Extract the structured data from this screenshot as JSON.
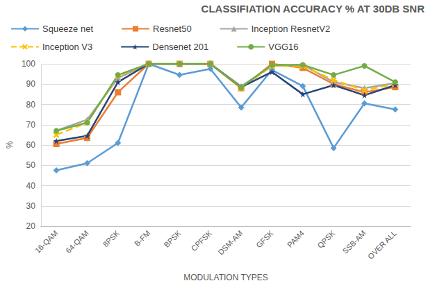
{
  "chart_data": {
    "type": "line",
    "title": "CLASSIFIATION ACCURACY % AT 30DB SNR",
    "x_label": "MODULATION TYPES",
    "y_label": "%",
    "categories": [
      "16-QAM",
      "64-QAM",
      "8PSK",
      "B-FM",
      "BPSK",
      "CPFSK",
      "DSM-AM",
      "GFSK",
      "PAM4",
      "QPSK",
      "SSB-AM",
      "OVER ALL"
    ],
    "series": [
      {
        "name": "Squeeze net",
        "color": "#5B9BD5",
        "marker": "diamond",
        "line_style": "solid",
        "values": [
          47.5,
          51,
          61,
          100,
          94.5,
          97.5,
          78.5,
          97,
          89,
          58.5,
          80.5,
          77.5
        ]
      },
      {
        "name": "Resnet50",
        "color": "#ED7D31",
        "marker": "square",
        "line_style": "solid",
        "values": [
          60.5,
          63.5,
          86,
          100,
          100,
          100,
          88,
          100,
          98,
          90,
          86,
          88.5
        ]
      },
      {
        "name": "Inception ResnetV2",
        "color": "#A5A5A5",
        "marker": "triangle",
        "line_style": "solid",
        "values": [
          67,
          72.5,
          93,
          100,
          100,
          100,
          89,
          99,
          99.5,
          91,
          88,
          90.5
        ]
      },
      {
        "name": "Inception V3",
        "color": "#FFC000",
        "marker": "x",
        "line_style": "dashed",
        "values": [
          65,
          71,
          94,
          100,
          100,
          100,
          88,
          99,
          99,
          92,
          87,
          90
        ]
      },
      {
        "name": "Densenet 201",
        "color": "#264478",
        "marker": "star",
        "line_style": "solid",
        "values": [
          62,
          64.5,
          91,
          100,
          100,
          100,
          88.5,
          96,
          85,
          89.5,
          84.5,
          89.5
        ]
      },
      {
        "name": "VGG16",
        "color": "#70AD47",
        "marker": "circle",
        "line_style": "solid",
        "values": [
          67,
          71,
          94.5,
          100,
          100,
          100,
          88.5,
          99.5,
          99.5,
          94.5,
          99,
          91
        ]
      }
    ],
    "ylim": [
      20,
      100
    ],
    "yticks": [
      20,
      30,
      40,
      50,
      60,
      70,
      80,
      90,
      100
    ],
    "grid": true,
    "legend": "top"
  }
}
